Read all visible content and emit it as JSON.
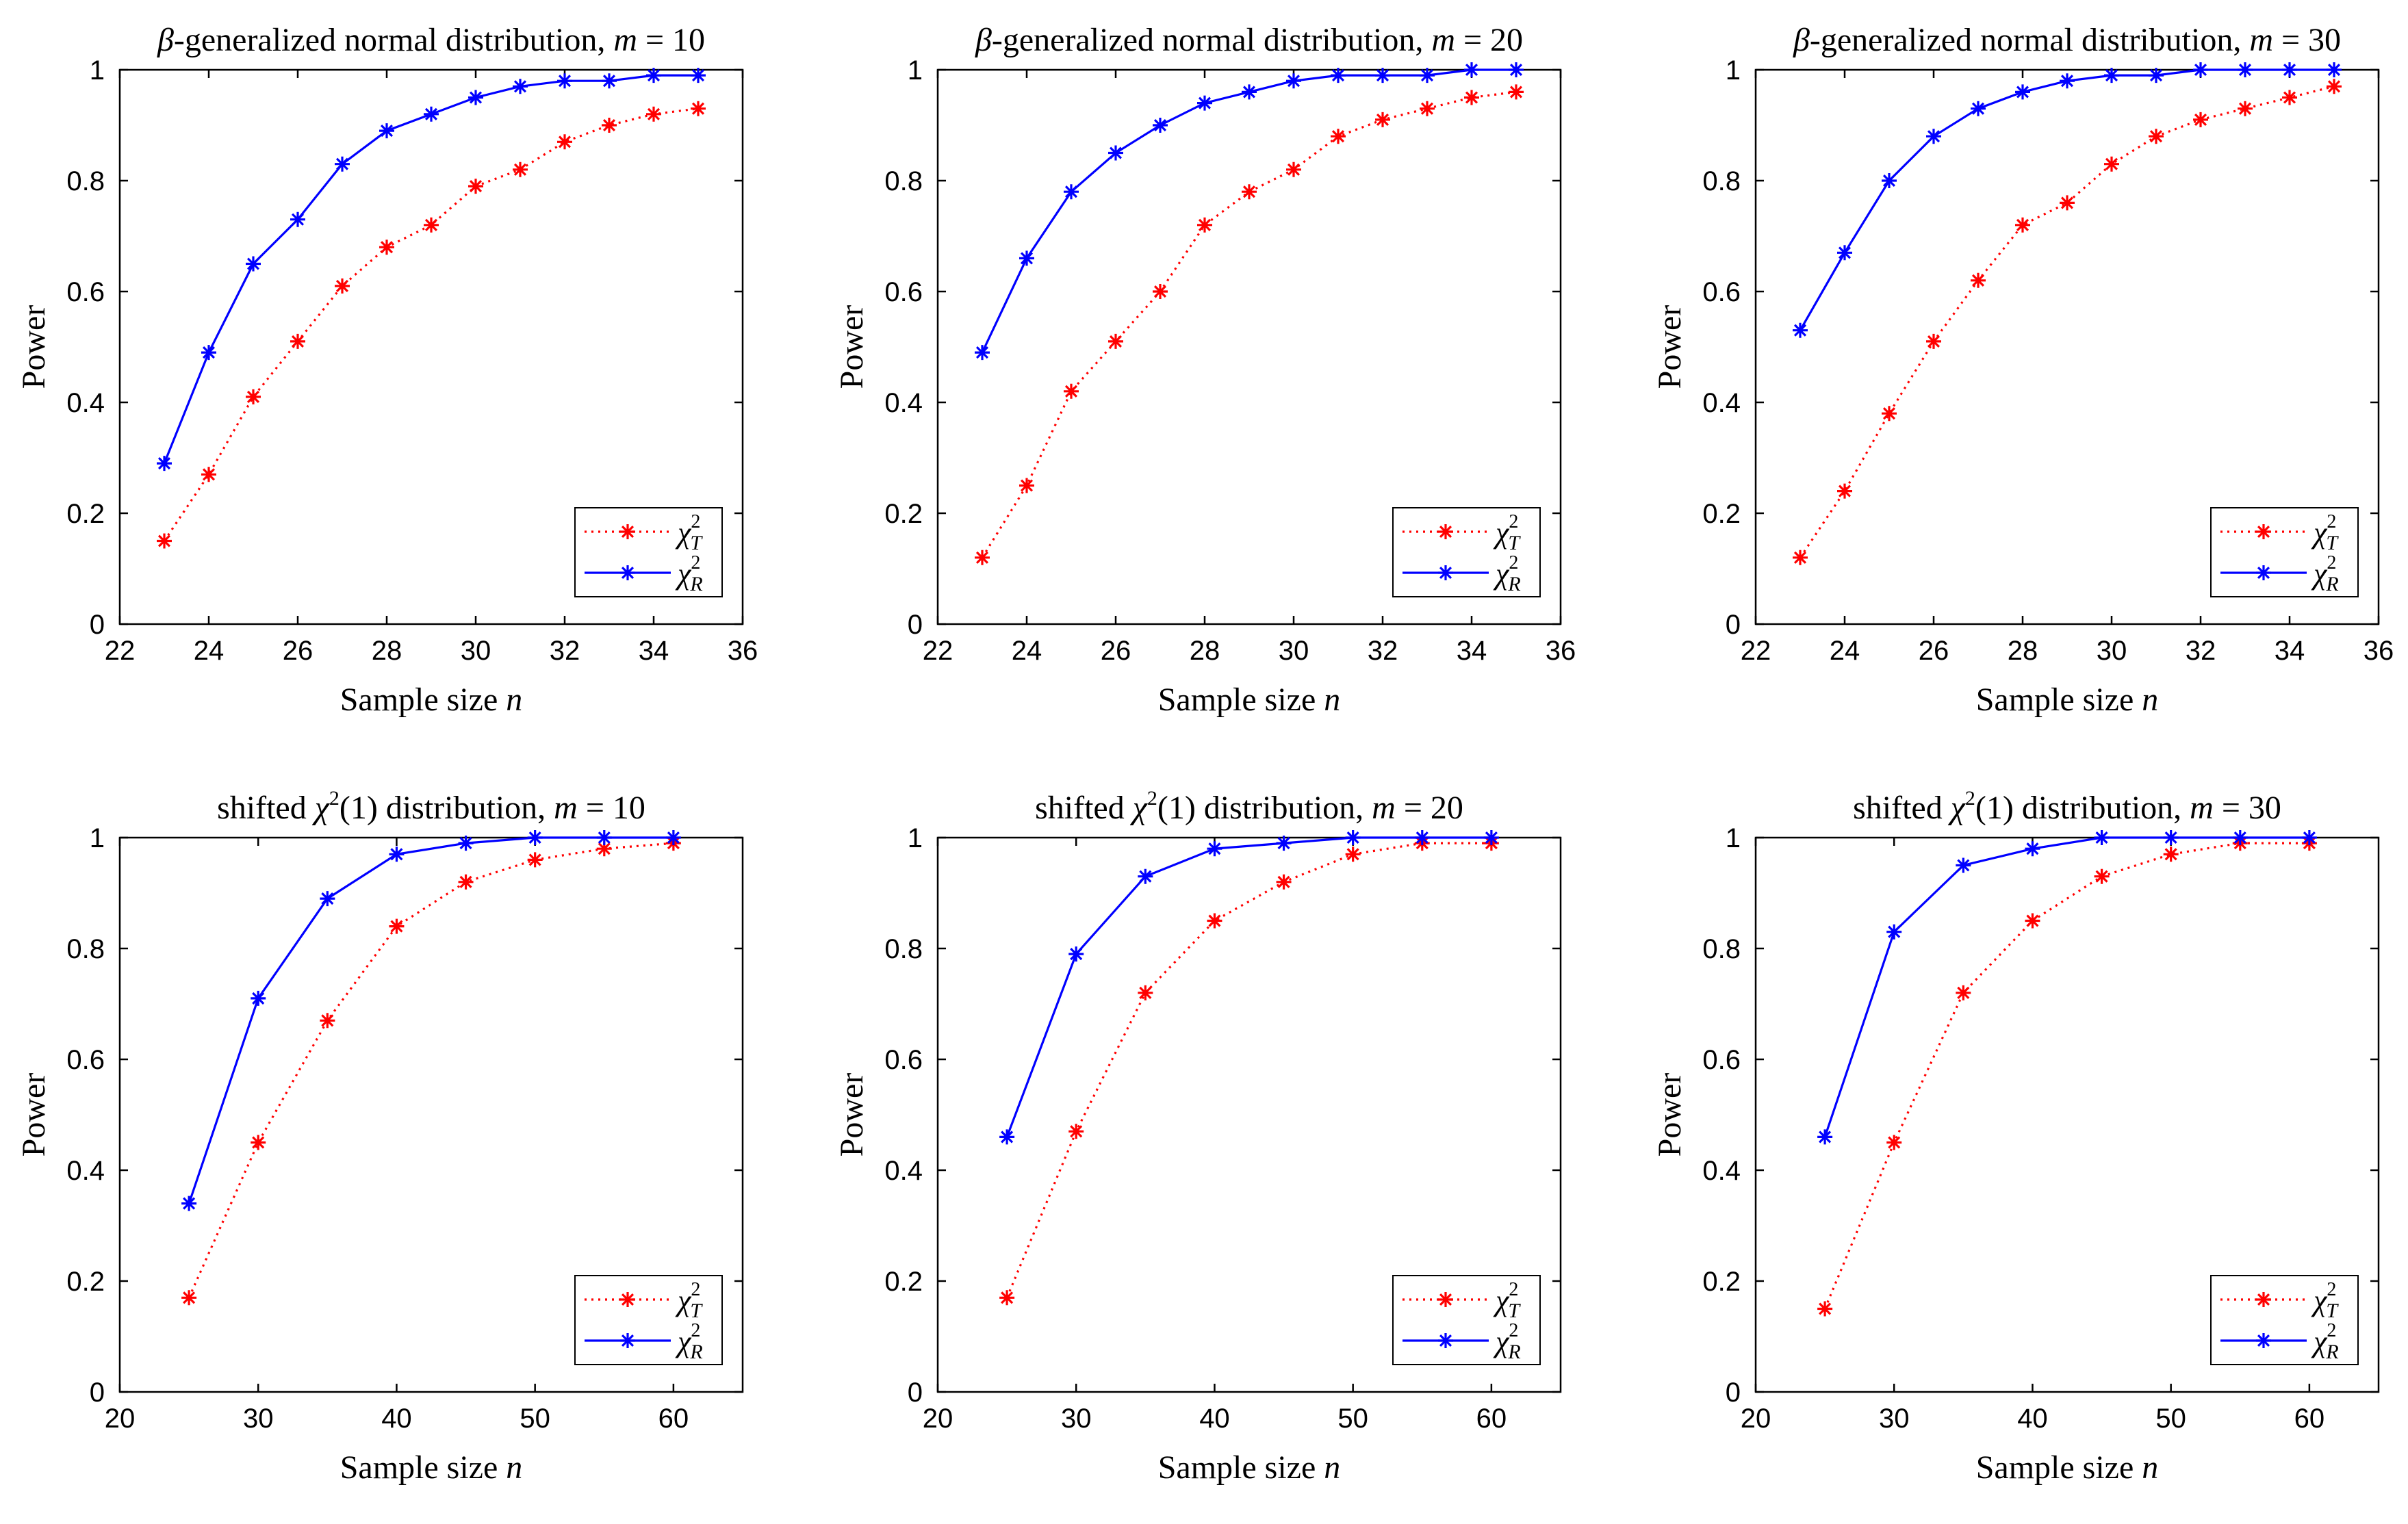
{
  "figure": {
    "colors": {
      "T": "#ff0000",
      "R": "#0000ff",
      "axis": "#000000"
    }
  },
  "chart_data": [
    {
      "type": "line",
      "title": "β-generalized normal distribution, m = 10",
      "xlabel": "Sample size n",
      "ylabel": "Power",
      "xlim": [
        22,
        36
      ],
      "ylim": [
        0,
        1
      ],
      "xticks": [
        22,
        24,
        26,
        28,
        30,
        32,
        34,
        36
      ],
      "yticks": [
        0,
        0.2,
        0.4,
        0.6,
        0.8,
        1
      ],
      "legend": "bottom-right",
      "x": [
        23,
        24,
        25,
        26,
        27,
        28,
        29,
        30,
        31,
        32,
        33,
        34,
        35
      ],
      "series": [
        {
          "name": "χ²_T",
          "style": "dotted",
          "values": [
            0.15,
            0.27,
            0.41,
            0.51,
            0.61,
            0.68,
            0.72,
            0.79,
            0.82,
            0.87,
            0.9,
            0.92,
            0.93
          ]
        },
        {
          "name": "χ²_R",
          "style": "solid",
          "values": [
            0.29,
            0.49,
            0.65,
            0.73,
            0.83,
            0.89,
            0.92,
            0.95,
            0.97,
            0.98,
            0.98,
            0.99,
            0.99
          ]
        }
      ]
    },
    {
      "type": "line",
      "title": "β-generalized normal distribution, m = 20",
      "xlabel": "Sample size n",
      "ylabel": "Power",
      "xlim": [
        22,
        36
      ],
      "ylim": [
        0,
        1
      ],
      "xticks": [
        22,
        24,
        26,
        28,
        30,
        32,
        34,
        36
      ],
      "yticks": [
        0,
        0.2,
        0.4,
        0.6,
        0.8,
        1
      ],
      "legend": "bottom-right",
      "x": [
        23,
        24,
        25,
        26,
        27,
        28,
        29,
        30,
        31,
        32,
        33,
        34,
        35
      ],
      "series": [
        {
          "name": "χ²_T",
          "style": "dotted",
          "values": [
            0.12,
            0.25,
            0.42,
            0.51,
            0.6,
            0.72,
            0.78,
            0.82,
            0.88,
            0.91,
            0.93,
            0.95,
            0.96
          ]
        },
        {
          "name": "χ²_R",
          "style": "solid",
          "values": [
            0.49,
            0.66,
            0.78,
            0.85,
            0.9,
            0.94,
            0.96,
            0.98,
            0.99,
            0.99,
            0.99,
            1.0,
            1.0
          ]
        }
      ]
    },
    {
      "type": "line",
      "title": "β-generalized normal distribution, m = 30",
      "xlabel": "Sample size n",
      "ylabel": "Power",
      "xlim": [
        22,
        36
      ],
      "ylim": [
        0,
        1
      ],
      "xticks": [
        22,
        24,
        26,
        28,
        30,
        32,
        34,
        36
      ],
      "yticks": [
        0,
        0.2,
        0.4,
        0.6,
        0.8,
        1
      ],
      "legend": "bottom-right",
      "x": [
        23,
        24,
        25,
        26,
        27,
        28,
        29,
        30,
        31,
        32,
        33,
        34,
        35
      ],
      "series": [
        {
          "name": "χ²_T",
          "style": "dotted",
          "values": [
            0.12,
            0.24,
            0.38,
            0.51,
            0.62,
            0.72,
            0.76,
            0.83,
            0.88,
            0.91,
            0.93,
            0.95,
            0.97
          ]
        },
        {
          "name": "χ²_R",
          "style": "solid",
          "values": [
            0.53,
            0.67,
            0.8,
            0.88,
            0.93,
            0.96,
            0.98,
            0.99,
            0.99,
            1.0,
            1.0,
            1.0,
            1.0
          ]
        }
      ]
    },
    {
      "type": "line",
      "title": "shifted χ²(1) distribution, m = 10",
      "xlabel": "Sample size n",
      "ylabel": "Power",
      "xlim": [
        20,
        65
      ],
      "ylim": [
        0,
        1
      ],
      "xticks": [
        20,
        30,
        40,
        50,
        60
      ],
      "yticks": [
        0,
        0.2,
        0.4,
        0.6,
        0.8,
        1
      ],
      "legend": "bottom-right",
      "x": [
        25,
        30,
        35,
        40,
        45,
        50,
        55,
        60
      ],
      "series": [
        {
          "name": "χ²_T",
          "style": "dotted",
          "values": [
            0.17,
            0.45,
            0.67,
            0.84,
            0.92,
            0.96,
            0.98,
            0.99
          ]
        },
        {
          "name": "χ²_R",
          "style": "solid",
          "values": [
            0.34,
            0.71,
            0.89,
            0.97,
            0.99,
            1.0,
            1.0,
            1.0
          ]
        }
      ]
    },
    {
      "type": "line",
      "title": "shifted χ²(1) distribution, m = 20",
      "xlabel": "Sample size n",
      "ylabel": "Power",
      "xlim": [
        20,
        65
      ],
      "ylim": [
        0,
        1
      ],
      "xticks": [
        20,
        30,
        40,
        50,
        60
      ],
      "yticks": [
        0,
        0.2,
        0.4,
        0.6,
        0.8,
        1
      ],
      "legend": "bottom-right",
      "x": [
        25,
        30,
        35,
        40,
        45,
        50,
        55,
        60
      ],
      "series": [
        {
          "name": "χ²_T",
          "style": "dotted",
          "values": [
            0.17,
            0.47,
            0.72,
            0.85,
            0.92,
            0.97,
            0.99,
            0.99
          ]
        },
        {
          "name": "χ²_R",
          "style": "solid",
          "values": [
            0.46,
            0.79,
            0.93,
            0.98,
            0.99,
            1.0,
            1.0,
            1.0
          ]
        }
      ]
    },
    {
      "type": "line",
      "title": "shifted χ²(1) distribution, m = 30",
      "xlabel": "Sample size n",
      "ylabel": "Power",
      "xlim": [
        20,
        65
      ],
      "ylim": [
        0,
        1
      ],
      "xticks": [
        20,
        30,
        40,
        50,
        60
      ],
      "yticks": [
        0,
        0.2,
        0.4,
        0.6,
        0.8,
        1
      ],
      "legend": "bottom-right",
      "x": [
        25,
        30,
        35,
        40,
        45,
        50,
        55,
        60
      ],
      "series": [
        {
          "name": "χ²_T",
          "style": "dotted",
          "values": [
            0.15,
            0.45,
            0.72,
            0.85,
            0.93,
            0.97,
            0.99,
            0.99
          ]
        },
        {
          "name": "χ²_R",
          "style": "solid",
          "values": [
            0.46,
            0.83,
            0.95,
            0.98,
            1.0,
            1.0,
            1.0,
            1.0
          ]
        }
      ]
    }
  ]
}
